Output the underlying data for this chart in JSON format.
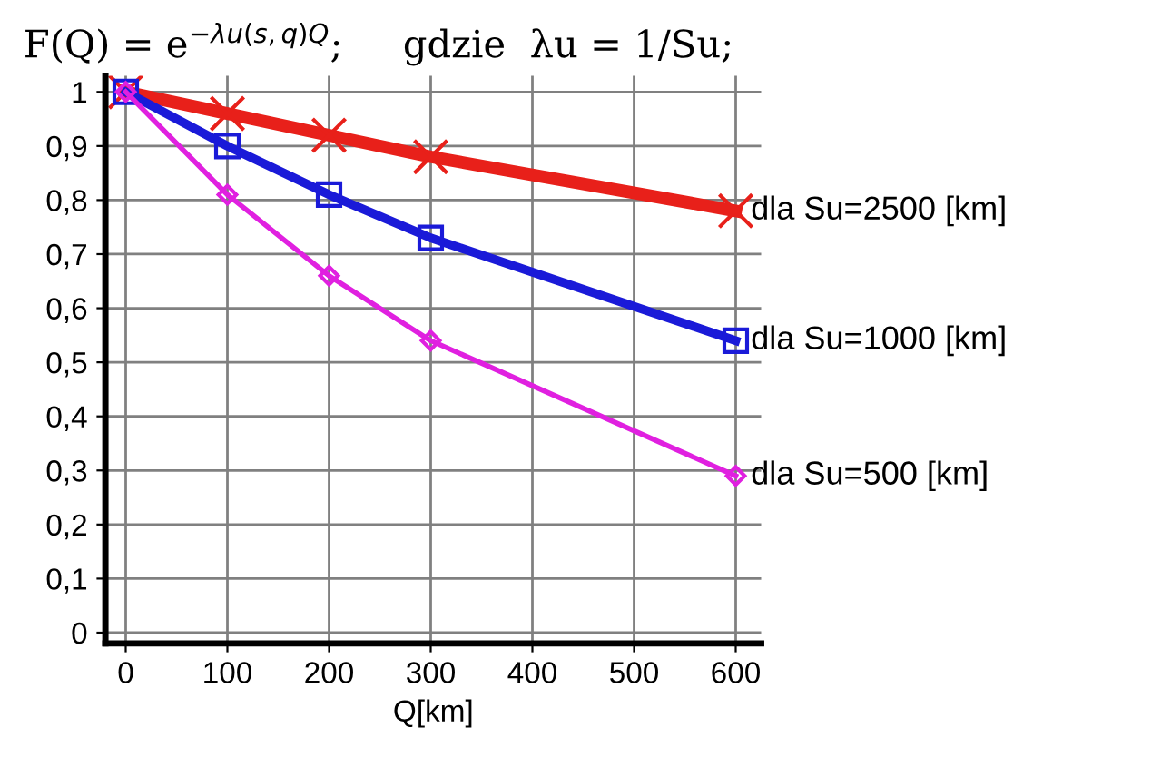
{
  "chart_data": {
    "type": "line",
    "title": "F(Q) = e$^{−λu(s,q)Q}$;     gdzie  λu = 1/Su;",
    "xlabel": "Q[km]",
    "x": [
      0,
      100,
      200,
      300,
      600
    ],
    "series": [
      {
        "name": "dla Su=2500 [km]",
        "color": "#e8201a",
        "marker": "cross",
        "values": [
          1,
          0.96,
          0.92,
          0.88,
          0.78
        ]
      },
      {
        "name": "dla Su=1000 [km]",
        "color": "#1a1ad8",
        "marker": "square",
        "values": [
          1,
          0.9,
          0.81,
          0.73,
          0.54
        ]
      },
      {
        "name": "dla Su=500 [km]",
        "color": "#e020e0",
        "marker": "diamond",
        "values": [
          1,
          0.81,
          0.66,
          0.54,
          0.29
        ]
      }
    ],
    "xlim": [
      -20,
      625
    ],
    "ylim": [
      -0.02,
      1.03
    ],
    "xticks": [
      0,
      100,
      200,
      300,
      400,
      500,
      600
    ],
    "yticks": [
      {
        "value": 0,
        "label": "0"
      },
      {
        "value": 0.1,
        "label": "0,1"
      },
      {
        "value": 0.2,
        "label": "0,2"
      },
      {
        "value": 0.3,
        "label": "0,3"
      },
      {
        "value": 0.4,
        "label": "0,4"
      },
      {
        "value": 0.5,
        "label": "0,5"
      },
      {
        "value": 0.6,
        "label": "0,6"
      },
      {
        "value": 0.7,
        "label": "0,7"
      },
      {
        "value": 0.8,
        "label": "0,8"
      },
      {
        "value": 0.9,
        "label": "0,9"
      },
      {
        "value": 1,
        "label": "1"
      }
    ],
    "grid": true,
    "line_style": "solid",
    "legend": "right"
  }
}
